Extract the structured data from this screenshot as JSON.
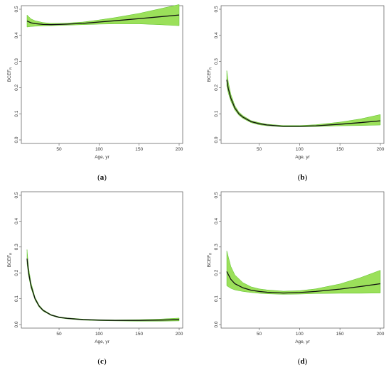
{
  "colors": {
    "band": "#9be05a",
    "band_edge": "#5cc12a",
    "line": "#111111",
    "axis": "#555555"
  },
  "chart_data": [
    {
      "type": "line",
      "panel_letter": "a",
      "xlabel": "Age, yr",
      "ylabel": "BCEF",
      "ylabel_sub": "R",
      "xlim": [
        10,
        200
      ],
      "ylim": [
        0,
        0.5
      ],
      "x_ticks": [
        50,
        100,
        150,
        200
      ],
      "y_ticks": [
        0.0,
        0.1,
        0.2,
        0.3,
        0.4,
        0.5
      ],
      "x": [
        10,
        15,
        20,
        30,
        40,
        50,
        60,
        80,
        100,
        120,
        150,
        175,
        200
      ],
      "y": [
        0.455,
        0.448,
        0.445,
        0.442,
        0.441,
        0.442,
        0.443,
        0.446,
        0.451,
        0.456,
        0.464,
        0.471,
        0.478
      ],
      "lower": [
        0.432,
        0.434,
        0.435,
        0.436,
        0.437,
        0.438,
        0.439,
        0.441,
        0.443,
        0.444,
        0.444,
        0.441,
        0.437
      ],
      "upper": [
        0.478,
        0.463,
        0.456,
        0.449,
        0.446,
        0.446,
        0.447,
        0.451,
        0.459,
        0.468,
        0.484,
        0.501,
        0.518
      ]
    },
    {
      "type": "line",
      "panel_letter": "b",
      "xlabel": "Age, yr",
      "ylabel": "BCEF",
      "ylabel_sub": "R",
      "xlim": [
        10,
        200
      ],
      "ylim": [
        0,
        0.5
      ],
      "x_ticks": [
        50,
        100,
        150,
        200
      ],
      "y_ticks": [
        0.0,
        0.1,
        0.2,
        0.3,
        0.4,
        0.5
      ],
      "x": [
        10,
        12,
        15,
        20,
        25,
        30,
        40,
        50,
        60,
        80,
        100,
        120,
        150,
        175,
        200
      ],
      "y": [
        0.23,
        0.195,
        0.16,
        0.122,
        0.1,
        0.087,
        0.07,
        0.062,
        0.057,
        0.052,
        0.052,
        0.054,
        0.06,
        0.066,
        0.073
      ],
      "lower": [
        0.205,
        0.178,
        0.148,
        0.114,
        0.094,
        0.082,
        0.066,
        0.058,
        0.054,
        0.05,
        0.05,
        0.051,
        0.054,
        0.055,
        0.057
      ],
      "upper": [
        0.265,
        0.22,
        0.175,
        0.131,
        0.107,
        0.093,
        0.074,
        0.066,
        0.06,
        0.055,
        0.055,
        0.058,
        0.068,
        0.08,
        0.097
      ]
    },
    {
      "type": "line",
      "panel_letter": "c",
      "xlabel": "Age, yr",
      "ylabel": "BCEF",
      "ylabel_sub": "R",
      "xlim": [
        10,
        200
      ],
      "ylim": [
        0,
        0.5
      ],
      "x_ticks": [
        50,
        100,
        150,
        200
      ],
      "y_ticks": [
        0.0,
        0.1,
        0.2,
        0.3,
        0.4,
        0.5
      ],
      "x": [
        10,
        12,
        15,
        20,
        25,
        30,
        40,
        50,
        60,
        80,
        100,
        120,
        150,
        175,
        200
      ],
      "y": [
        0.255,
        0.2,
        0.15,
        0.1,
        0.072,
        0.055,
        0.037,
        0.028,
        0.024,
        0.019,
        0.017,
        0.016,
        0.016,
        0.017,
        0.019
      ],
      "lower": [
        0.235,
        0.187,
        0.141,
        0.095,
        0.068,
        0.052,
        0.035,
        0.026,
        0.022,
        0.017,
        0.015,
        0.014,
        0.013,
        0.013,
        0.014
      ],
      "upper": [
        0.29,
        0.22,
        0.162,
        0.106,
        0.076,
        0.058,
        0.039,
        0.03,
        0.026,
        0.021,
        0.019,
        0.018,
        0.019,
        0.021,
        0.025
      ]
    },
    {
      "type": "line",
      "panel_letter": "d",
      "xlabel": "Age, yr",
      "ylabel": "BCEF",
      "ylabel_sub": "R",
      "xlim": [
        10,
        200
      ],
      "ylim": [
        0,
        0.5
      ],
      "x_ticks": [
        50,
        100,
        150,
        200
      ],
      "y_ticks": [
        0.0,
        0.1,
        0.2,
        0.3,
        0.4,
        0.5
      ],
      "x": [
        10,
        15,
        20,
        30,
        40,
        50,
        60,
        80,
        100,
        120,
        150,
        175,
        200
      ],
      "y": [
        0.205,
        0.175,
        0.158,
        0.142,
        0.133,
        0.128,
        0.125,
        0.122,
        0.124,
        0.128,
        0.137,
        0.147,
        0.158
      ],
      "lower": [
        0.15,
        0.14,
        0.134,
        0.128,
        0.124,
        0.121,
        0.119,
        0.117,
        0.118,
        0.12,
        0.121,
        0.121,
        0.122
      ],
      "upper": [
        0.285,
        0.225,
        0.192,
        0.162,
        0.146,
        0.138,
        0.134,
        0.129,
        0.131,
        0.138,
        0.157,
        0.181,
        0.21
      ]
    }
  ]
}
